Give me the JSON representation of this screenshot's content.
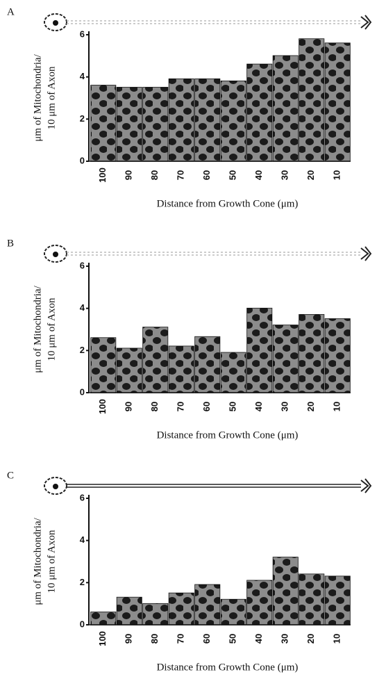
{
  "chart_data": [
    {
      "type": "bar",
      "panel": "A",
      "ylabel": [
        "μm of Mitochondria/",
        "10 μm of Axon"
      ],
      "xlabel": "Distance from Growth Cone (μm)",
      "categories": [
        "100",
        "90",
        "80",
        "70",
        "60",
        "50",
        "40",
        "30",
        "20",
        "10"
      ],
      "values": [
        3.6,
        3.5,
        3.5,
        3.9,
        3.9,
        3.8,
        4.6,
        5.0,
        5.8,
        5.6
      ],
      "color": "#3a3a3a",
      "ylim": [
        0,
        6
      ],
      "yticks": [
        0,
        2,
        4,
        6
      ]
    },
    {
      "type": "bar",
      "panel": "B",
      "ylabel": [
        "μm of Mitochondria/",
        "10 μm of Axon"
      ],
      "xlabel": "Distance from Growth Cone (μm)",
      "categories": [
        "100",
        "90",
        "80",
        "70",
        "60",
        "50",
        "40",
        "30",
        "20",
        "10"
      ],
      "values": [
        2.6,
        2.1,
        3.1,
        2.2,
        2.65,
        1.9,
        4.0,
        3.2,
        3.7,
        3.5
      ],
      "color": "#3a3a3a",
      "ylim": [
        0,
        6
      ],
      "yticks": [
        0,
        2,
        4,
        6
      ]
    },
    {
      "type": "bar",
      "panel": "C",
      "ylabel": [
        "μm of Mitochondria/",
        "10 μm of Axon"
      ],
      "xlabel": "Distance from Growth Cone (μm)",
      "categories": [
        "100",
        "90",
        "80",
        "70",
        "60",
        "50",
        "40",
        "30",
        "20",
        "10"
      ],
      "values": [
        0.6,
        1.3,
        1.0,
        1.5,
        1.9,
        1.2,
        2.1,
        3.2,
        2.4,
        2.3
      ],
      "color": "#3a3a3a",
      "ylim": [
        0,
        6
      ],
      "yticks": [
        0,
        2,
        4,
        6
      ]
    }
  ]
}
